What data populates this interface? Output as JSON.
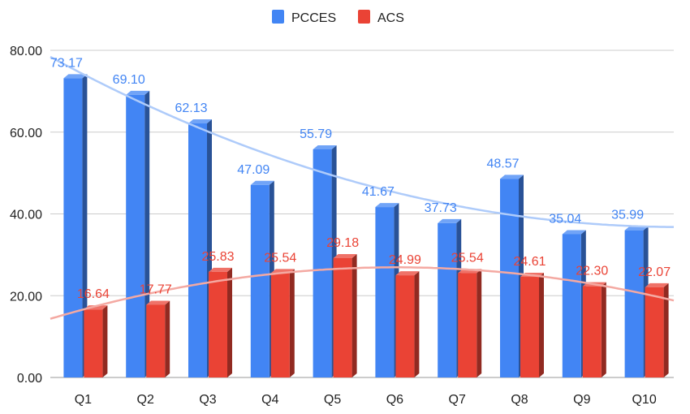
{
  "chart_data": {
    "type": "bar",
    "title": "",
    "xlabel": "",
    "ylabel": "",
    "categories": [
      "Q1",
      "Q2",
      "Q3",
      "Q4",
      "Q5",
      "Q6",
      "Q7",
      "Q8",
      "Q9",
      "Q10"
    ],
    "series": [
      {
        "name": "PCCES",
        "color": "#4285f4",
        "values": [
          73.17,
          69.1,
          62.13,
          47.09,
          55.79,
          41.67,
          37.73,
          48.57,
          35.04,
          35.99
        ],
        "labels": [
          "73.17",
          "69.10",
          "62.13",
          "47.09",
          "55.79",
          "41.67",
          "37.73",
          "48.57",
          "35.04",
          "35.99"
        ]
      },
      {
        "name": "ACS",
        "color": "#ea4335",
        "values": [
          16.64,
          17.77,
          25.83,
          25.54,
          29.18,
          24.99,
          25.54,
          24.61,
          22.3,
          22.07
        ],
        "labels": [
          "16.64",
          "17.77",
          "25.83",
          "25.54",
          "29.18",
          "24.99",
          "25.54",
          "24.61",
          "22.30",
          "22.07"
        ]
      }
    ],
    "trendlines": [
      {
        "series": "PCCES",
        "color": "#aecbfa"
      },
      {
        "series": "ACS",
        "color": "#f4a9a2"
      }
    ],
    "ylim": [
      0,
      80
    ],
    "yticks": [
      "0.00",
      "20.00",
      "40.00",
      "60.00",
      "80.00"
    ],
    "grid": true,
    "legend_position": "top-center",
    "style": "3d-bars"
  }
}
